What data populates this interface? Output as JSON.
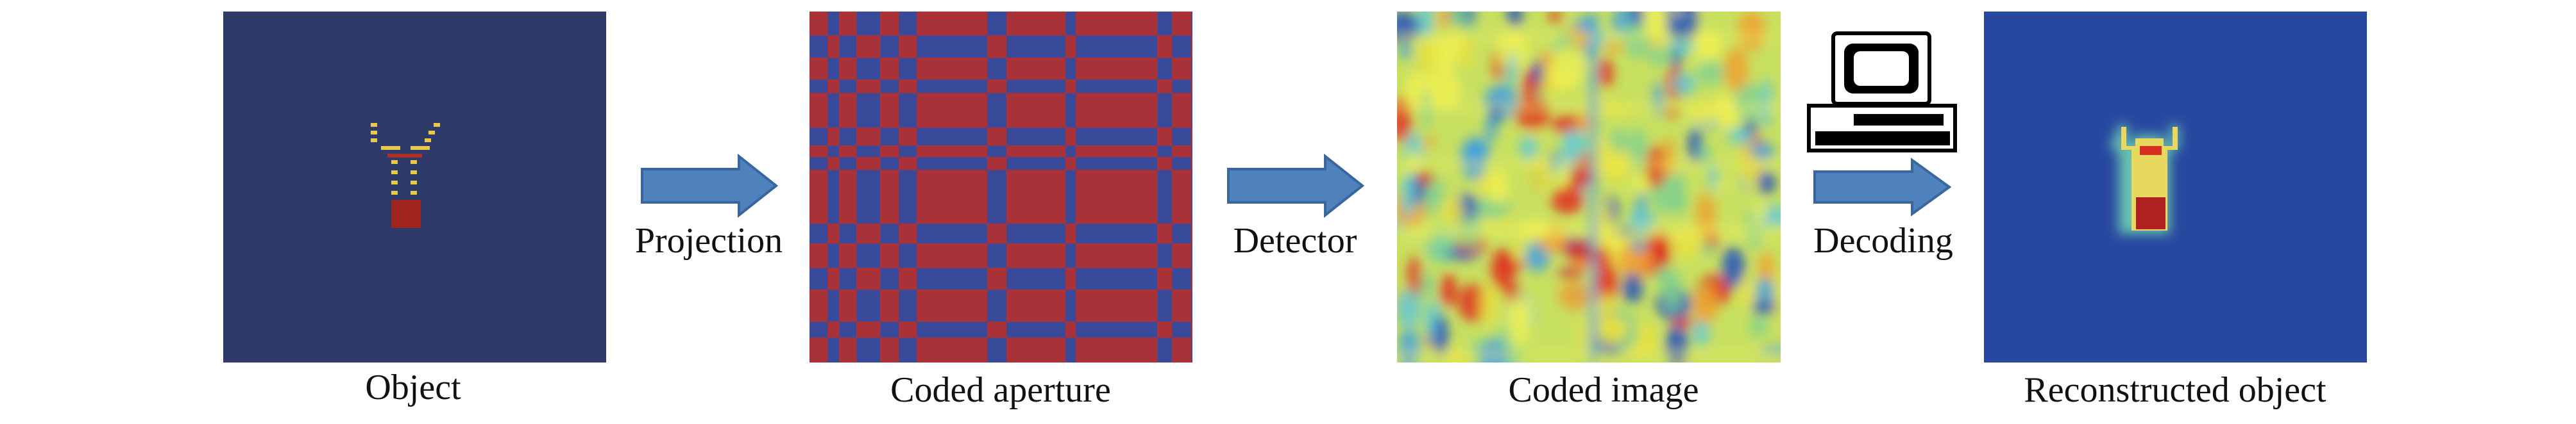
{
  "panels": [
    {
      "label": "Object"
    },
    {
      "label": "Coded aperture"
    },
    {
      "label": "Coded image"
    },
    {
      "label": "Reconstructed object"
    }
  ],
  "arrows": [
    {
      "label": "Projection"
    },
    {
      "label": "Detector"
    },
    {
      "label": "Decoding"
    }
  ]
}
